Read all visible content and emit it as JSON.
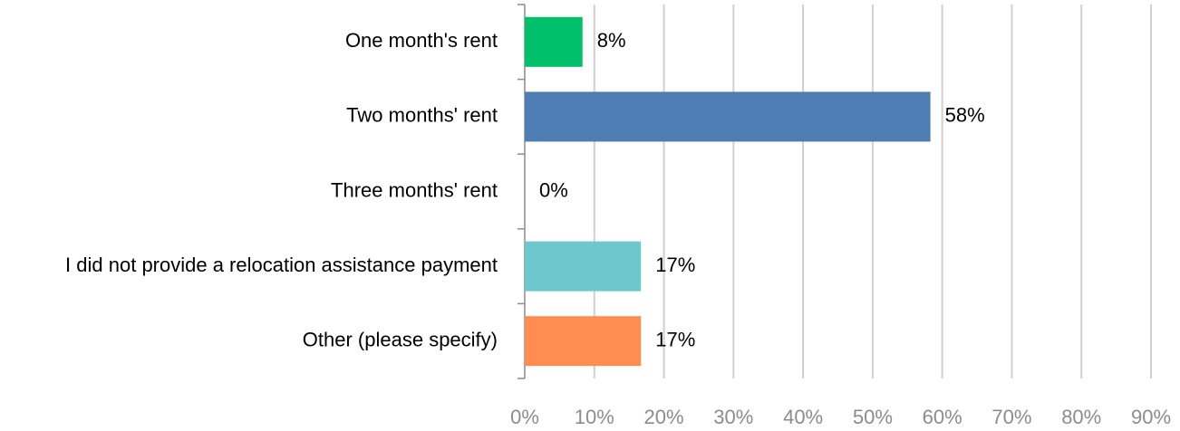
{
  "chart_data": {
    "type": "bar",
    "orientation": "horizontal",
    "categories": [
      "One month's rent",
      "Two months' rent",
      "Three months' rent",
      "I did not provide a relocation assistance payment",
      "Other (please specify)"
    ],
    "values": [
      8.3,
      58.3,
      0,
      16.7,
      16.7
    ],
    "value_labels": [
      "8%",
      "58%",
      "0%",
      "17%",
      "17%"
    ],
    "colors": [
      "#00c06b",
      "#4e7db4",
      "#4e7db4",
      "#6cc8cc",
      "#ff8c50"
    ],
    "xlim": [
      0,
      90
    ],
    "xticks": [
      {
        "value": 0,
        "label": "0%"
      },
      {
        "value": 10,
        "label": "10%"
      },
      {
        "value": 20,
        "label": "20%"
      },
      {
        "value": 30,
        "label": "30%"
      },
      {
        "value": 40,
        "label": "40%"
      },
      {
        "value": 50,
        "label": "50%"
      },
      {
        "value": 60,
        "label": "60%"
      },
      {
        "value": 70,
        "label": "70%"
      },
      {
        "value": 80,
        "label": "80%"
      },
      {
        "value": 90,
        "label": "90%"
      }
    ],
    "grid": true
  }
}
